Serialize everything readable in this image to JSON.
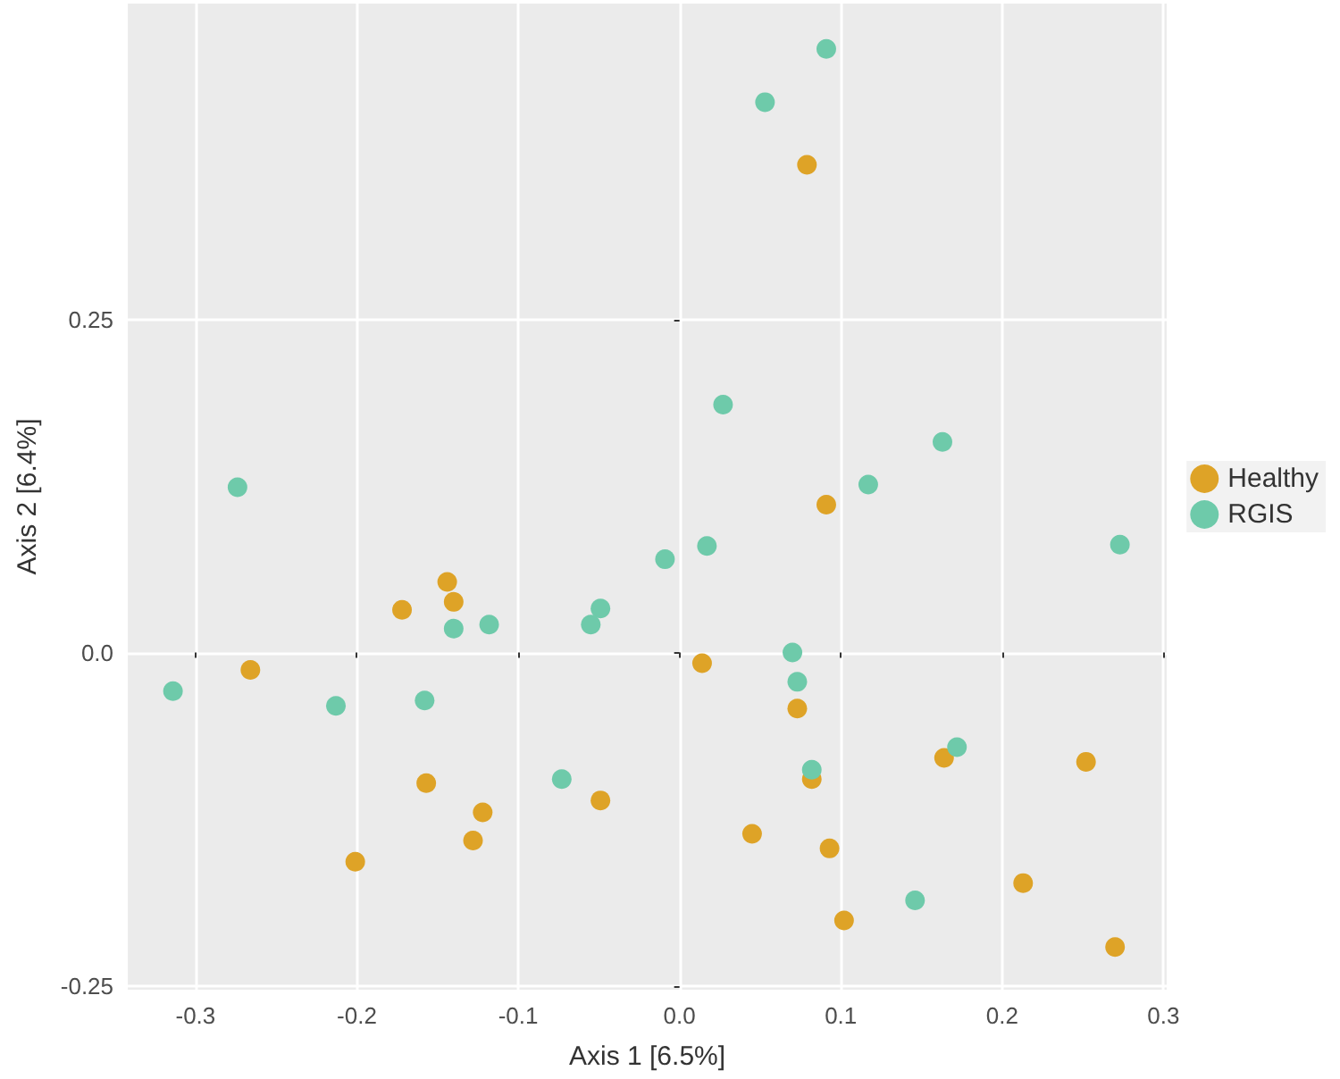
{
  "chart_data": {
    "type": "scatter",
    "xlabel": "Axis 1 [6.5%]",
    "ylabel": "Axis 2 [6.4%]",
    "xlim": [
      -0.342,
      0.302
    ],
    "ylim": [
      -0.253,
      0.487
    ],
    "xticks": [
      -0.3,
      -0.2,
      -0.1,
      {
        "value": 0,
        "label": "0.0"
      },
      0.1,
      0.2,
      0.3
    ],
    "yticks": [
      -0.25,
      {
        "value": 0,
        "label": "0.0"
      },
      0.25
    ],
    "grid": true,
    "legend": "right",
    "marker": "circle",
    "series": [
      {
        "name": "Healthy",
        "color": "#dea327",
        "x": [
          0.079,
          0.091,
          -0.144,
          -0.14,
          -0.172,
          -0.266,
          -0.157,
          -0.122,
          -0.128,
          -0.201,
          -0.049,
          0.014,
          0.073,
          0.164,
          0.252,
          0.082,
          0.045,
          0.093,
          0.213,
          0.102,
          0.27
        ],
        "values": [
          0.366,
          0.111,
          0.053,
          0.038,
          0.032,
          -0.013,
          -0.098,
          -0.12,
          -0.141,
          -0.157,
          -0.111,
          -0.008,
          -0.042,
          -0.079,
          -0.082,
          -0.095,
          -0.136,
          -0.147,
          -0.173,
          -0.201,
          -0.221
        ]
      },
      {
        "name": "RGIS",
        "color": "#6ecaaa",
        "x": [
          -0.274,
          0.091,
          0.053,
          0.027,
          0.163,
          0.117,
          -0.009,
          -0.049,
          -0.055,
          -0.118,
          -0.14,
          -0.314,
          -0.213,
          -0.158,
          -0.073,
          0.017,
          0.273,
          0.07,
          0.073,
          0.172,
          0.082,
          0.146
        ],
        "values": [
          0.124,
          0.453,
          0.413,
          0.186,
          0.158,
          0.126,
          0.07,
          0.033,
          0.021,
          0.021,
          0.018,
          -0.029,
          -0.04,
          -0.036,
          -0.095,
          0.08,
          0.081,
          0.0,
          -0.022,
          -0.071,
          -0.088,
          -0.186
        ]
      }
    ]
  }
}
